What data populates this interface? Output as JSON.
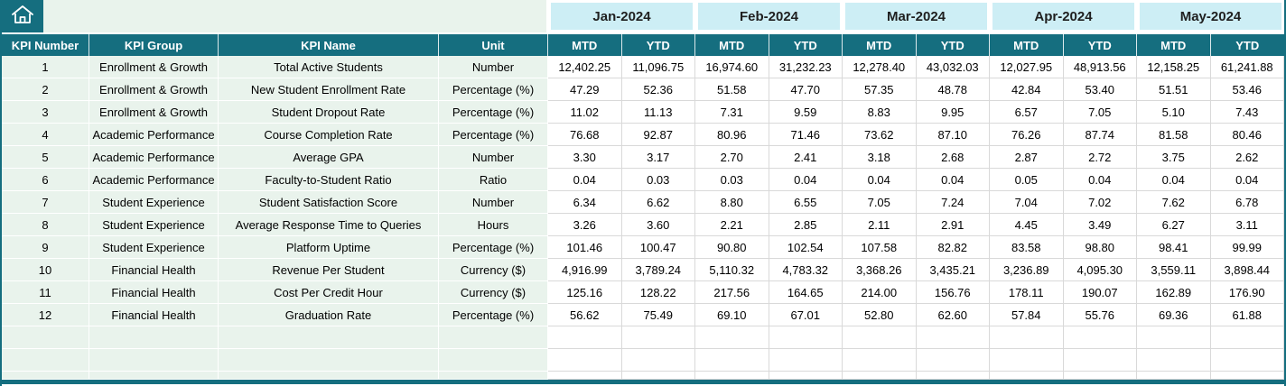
{
  "table": {
    "corner_icon": "home-icon",
    "months": [
      "Jan-2024",
      "Feb-2024",
      "Mar-2024",
      "Apr-2024",
      "May-2024"
    ],
    "sub_headers": [
      "MTD",
      "YTD"
    ],
    "left_headers": [
      "KPI Number",
      "KPI Group",
      "KPI Name",
      "Unit"
    ],
    "rows": [
      {
        "num": "1",
        "group": "Enrollment & Growth",
        "name": "Total Active Students",
        "unit": "Number",
        "values": [
          "12,402.25",
          "11,096.75",
          "16,974.60",
          "31,232.23",
          "12,278.40",
          "43,032.03",
          "12,027.95",
          "48,913.56",
          "12,158.25",
          "61,241.88"
        ]
      },
      {
        "num": "2",
        "group": "Enrollment & Growth",
        "name": "New Student Enrollment Rate",
        "unit": "Percentage (%)",
        "values": [
          "47.29",
          "52.36",
          "51.58",
          "47.70",
          "57.35",
          "48.78",
          "42.84",
          "53.40",
          "51.51",
          "53.46"
        ]
      },
      {
        "num": "3",
        "group": "Enrollment & Growth",
        "name": "Student Dropout Rate",
        "unit": "Percentage (%)",
        "values": [
          "11.02",
          "11.13",
          "7.31",
          "9.59",
          "8.83",
          "9.95",
          "6.57",
          "7.05",
          "5.10",
          "7.43"
        ]
      },
      {
        "num": "4",
        "group": "Academic Performance",
        "name": "Course Completion Rate",
        "unit": "Percentage (%)",
        "values": [
          "76.68",
          "92.87",
          "80.96",
          "71.46",
          "73.62",
          "87.10",
          "76.26",
          "87.74",
          "81.58",
          "80.46"
        ]
      },
      {
        "num": "5",
        "group": "Academic Performance",
        "name": "Average GPA",
        "unit": "Number",
        "values": [
          "3.30",
          "3.17",
          "2.70",
          "2.41",
          "3.18",
          "2.68",
          "2.87",
          "2.72",
          "3.75",
          "2.62"
        ]
      },
      {
        "num": "6",
        "group": "Academic Performance",
        "name": "Faculty-to-Student Ratio",
        "unit": "Ratio",
        "values": [
          "0.04",
          "0.03",
          "0.03",
          "0.04",
          "0.04",
          "0.04",
          "0.05",
          "0.04",
          "0.04",
          "0.04"
        ]
      },
      {
        "num": "7",
        "group": "Student Experience",
        "name": "Student Satisfaction Score",
        "unit": "Number",
        "values": [
          "6.34",
          "6.62",
          "8.80",
          "6.55",
          "7.05",
          "7.24",
          "7.04",
          "7.02",
          "7.62",
          "6.78"
        ]
      },
      {
        "num": "8",
        "group": "Student Experience",
        "name": "Average Response Time to Queries",
        "unit": "Hours",
        "values": [
          "3.26",
          "3.60",
          "2.21",
          "2.85",
          "2.11",
          "2.91",
          "4.45",
          "3.49",
          "6.27",
          "3.11"
        ]
      },
      {
        "num": "9",
        "group": "Student Experience",
        "name": "Platform Uptime",
        "unit": "Percentage (%)",
        "values": [
          "101.46",
          "100.47",
          "90.80",
          "102.54",
          "107.58",
          "82.82",
          "83.58",
          "98.80",
          "98.41",
          "99.99"
        ]
      },
      {
        "num": "10",
        "group": "Financial Health",
        "name": "Revenue Per Student",
        "unit": "Currency ($)",
        "values": [
          "4,916.99",
          "3,789.24",
          "5,110.32",
          "4,783.32",
          "3,368.26",
          "3,435.21",
          "3,236.89",
          "4,095.30",
          "3,559.11",
          "3,898.44"
        ]
      },
      {
        "num": "11",
        "group": "Financial Health",
        "name": "Cost Per Credit Hour",
        "unit": "Currency ($)",
        "values": [
          "125.16",
          "128.22",
          "217.56",
          "164.65",
          "214.00",
          "156.76",
          "178.11",
          "190.07",
          "162.89",
          "176.90"
        ]
      },
      {
        "num": "12",
        "group": "Financial Health",
        "name": "Graduation Rate",
        "unit": "Percentage (%)",
        "values": [
          "56.62",
          "75.49",
          "69.10",
          "67.01",
          "52.80",
          "62.60",
          "57.84",
          "55.76",
          "69.36",
          "61.88"
        ]
      }
    ],
    "empty_rows": 3,
    "colors": {
      "teal": "#156e7f",
      "month_header_cyan": "#cdeef5",
      "left_columns_green": "#e9f3ec",
      "grid_line": "#d9d9d9"
    }
  }
}
